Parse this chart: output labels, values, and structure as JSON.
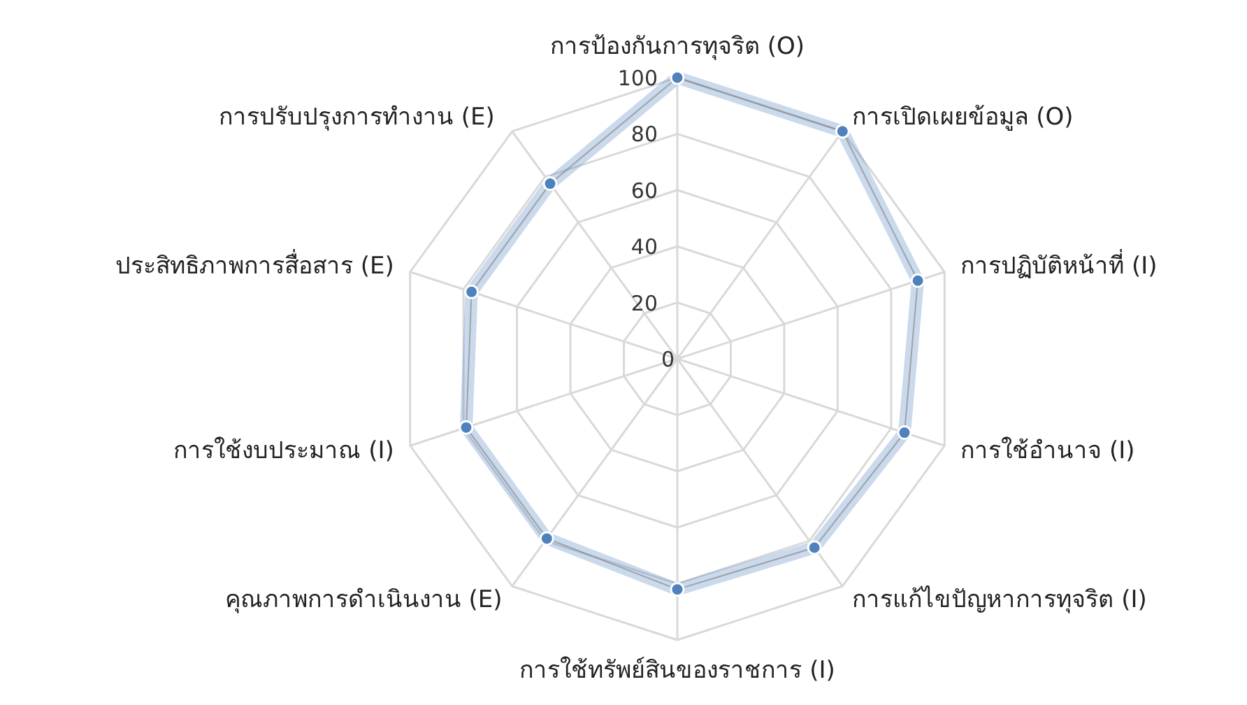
{
  "chart_data": {
    "type": "radar",
    "categories": [
      "การป้องกันการทุจริต (O)",
      "การเปิดเผยข้อมูล (O)",
      "การปฏิบัติหน้าที่ (I)",
      "การใช้อำนาจ (I)",
      "การแก้ไขปัญหาการทุจริต (I)",
      "การใช้ทรัพย์สินของราชการ (I)",
      "คุณภาพการดำเนินงาน (E)",
      "การใช้งบประมาณ (I)",
      "ประสิทธิภาพการสื่อสาร (E)",
      "การปรับปรุงการทำงาน  (E)"
    ],
    "series": [
      {
        "color": "#4f81bd",
        "values": [
          100,
          100,
          90,
          85,
          83,
          82,
          79,
          79,
          77,
          77
        ]
      }
    ],
    "ylim": [
      0,
      100
    ],
    "yticks": [
      0,
      20,
      40,
      60,
      80,
      100
    ],
    "grid": true,
    "marker": "circle"
  }
}
